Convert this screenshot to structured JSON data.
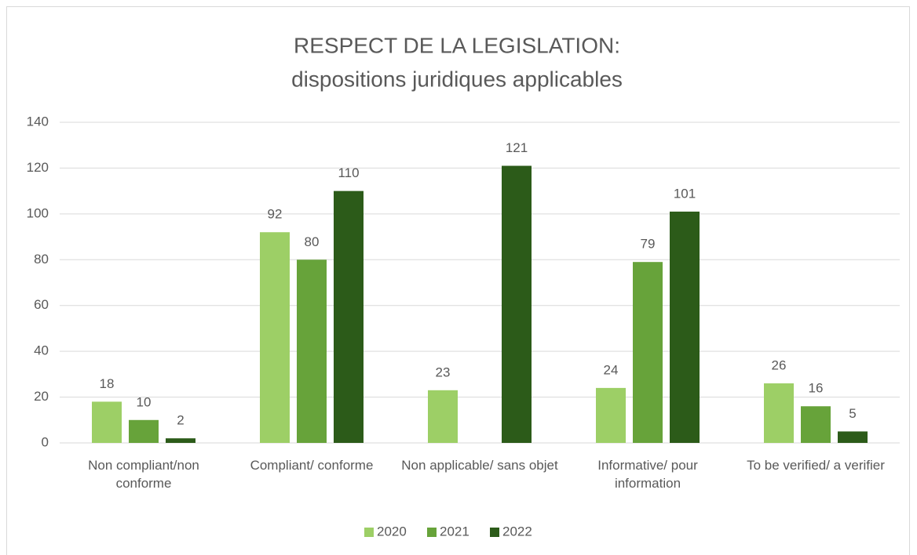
{
  "chart_data": {
    "type": "bar",
    "title": "RESPECT DE LA LEGISLATION:",
    "subtitle": "dispositions juridiques applicables",
    "categories": [
      "Non compliant/non conforme",
      "Compliant/ conforme",
      "Non applicable/ sans objet",
      "Informative/ pour information",
      "To be verified/ a verifier"
    ],
    "series": [
      {
        "name": "2020",
        "color": "#9dcf66",
        "values": [
          18,
          92,
          23,
          24,
          26
        ]
      },
      {
        "name": "2021",
        "color": "#67a33a",
        "values": [
          10,
          80,
          null,
          79,
          16
        ]
      },
      {
        "name": "2022",
        "color": "#2c5b19",
        "values": [
          2,
          110,
          121,
          101,
          5
        ]
      }
    ],
    "ylim": [
      0,
      140
    ],
    "yticks": [
      0,
      20,
      40,
      60,
      80,
      100,
      120,
      140
    ],
    "grid": true,
    "legend": "bottom"
  }
}
